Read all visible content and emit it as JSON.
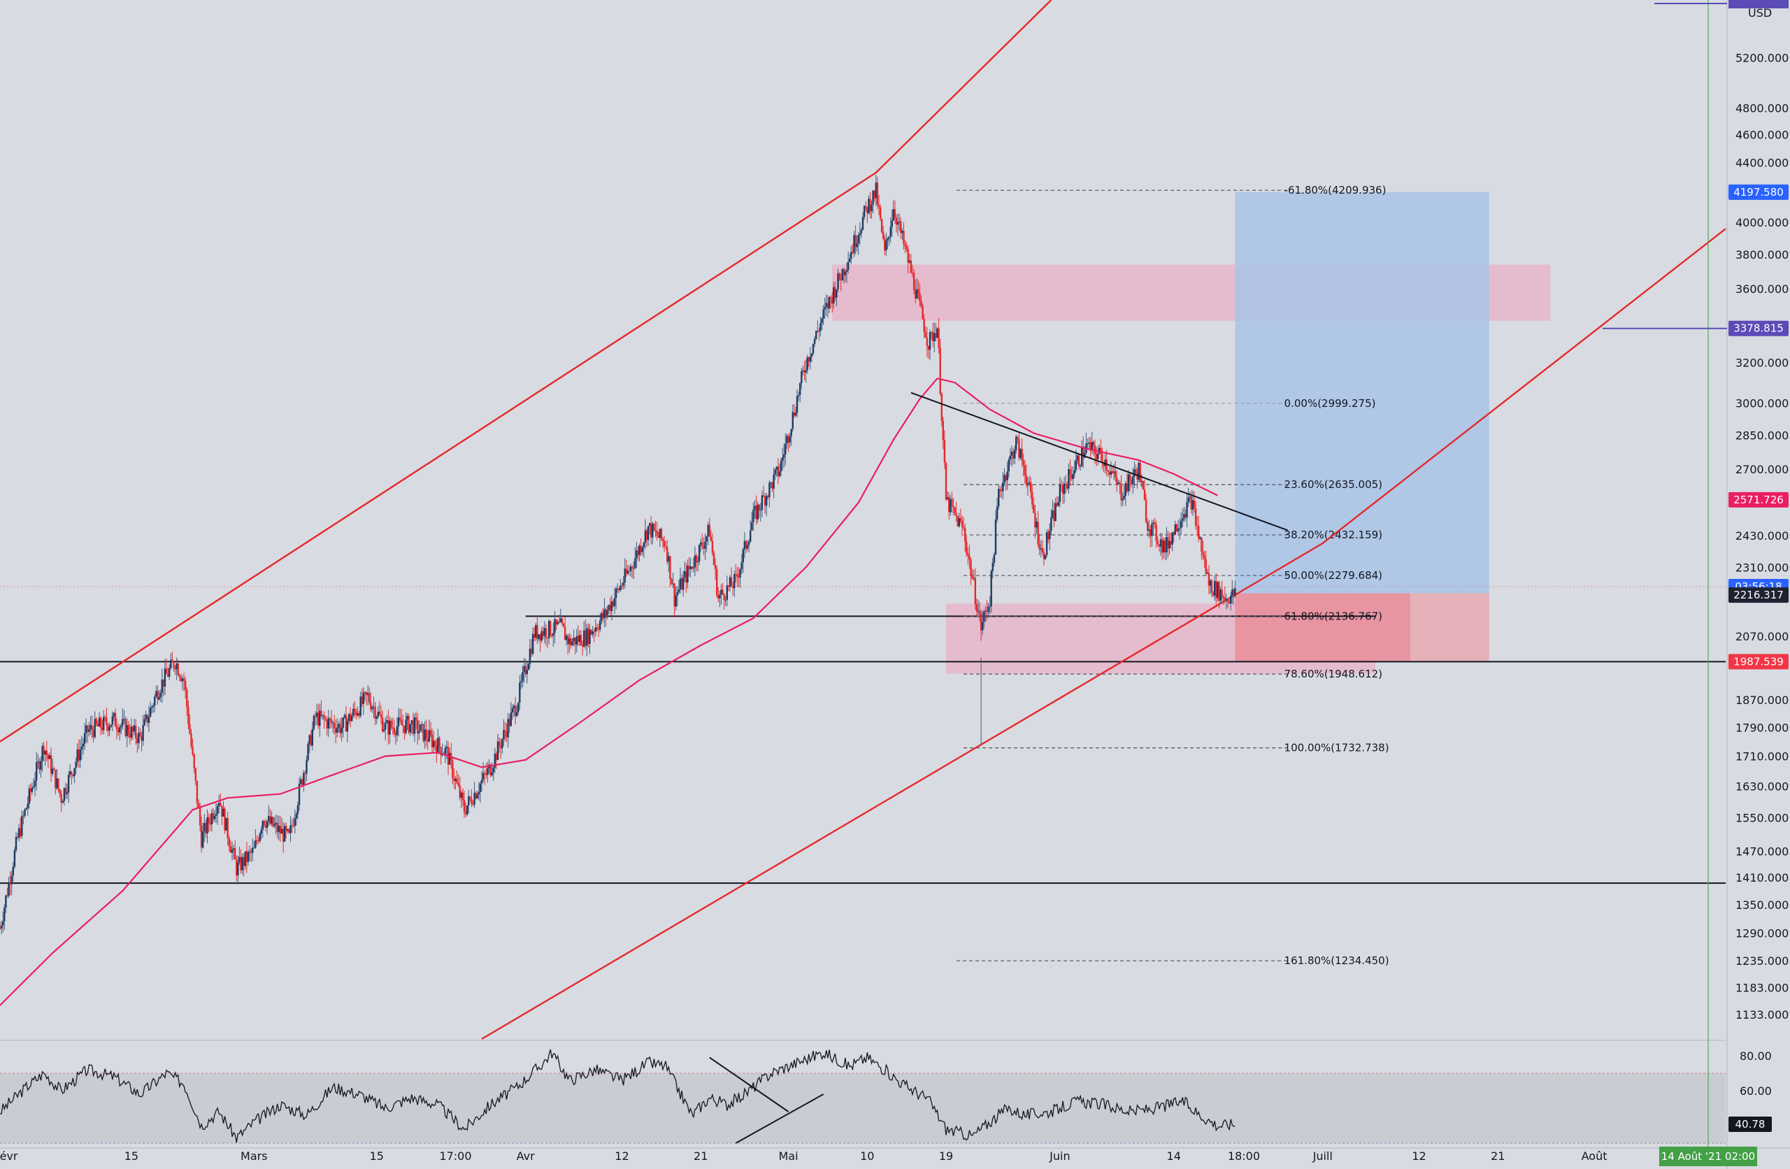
{
  "chart_data": {
    "type": "candlestick",
    "currency": "USD",
    "y_scale": "log",
    "ylim": [
      1090,
      5700
    ],
    "x_range": [
      "2021-01-31",
      "2021-08-16"
    ],
    "price_ticks": [
      "5200.000",
      "4800.000",
      "4600.000",
      "4400.000",
      "4000.000",
      "3800.000",
      "3600.000",
      "3200.000",
      "3000.000",
      "2850.000",
      "2700.000",
      "2430.000",
      "2310.000",
      "2070.000",
      "1870.000",
      "1790.000",
      "1710.000",
      "1630.000",
      "1550.000",
      "1470.000",
      "1410.000",
      "1350.000",
      "1290.000",
      "1235.000",
      "1183.000",
      "1133.000"
    ],
    "time_ticks": [
      {
        "label": "évr",
        "date": "2021-02-01"
      },
      {
        "label": "15",
        "date": "2021-02-15"
      },
      {
        "label": "Mars",
        "date": "2021-03-01"
      },
      {
        "label": "15",
        "date": "2021-03-15"
      },
      {
        "label": "17:00",
        "date": "2021-03-24"
      },
      {
        "label": "Avr",
        "date": "2021-04-01"
      },
      {
        "label": "12",
        "date": "2021-04-12"
      },
      {
        "label": "21",
        "date": "2021-04-21"
      },
      {
        "label": "Mai",
        "date": "2021-05-01"
      },
      {
        "label": "10",
        "date": "2021-05-10"
      },
      {
        "label": "19",
        "date": "2021-05-19"
      },
      {
        "label": "Juin",
        "date": "2021-06-01"
      },
      {
        "label": "14",
        "date": "2021-06-14"
      },
      {
        "label": "18:00",
        "date": "2021-06-22"
      },
      {
        "label": "Juill",
        "date": "2021-07-01"
      },
      {
        "label": "12",
        "date": "2021-07-12"
      },
      {
        "label": "21",
        "date": "2021-07-21"
      },
      {
        "label": "Août",
        "date": "2021-08-01"
      }
    ],
    "crosshair_time_label": "14 Août '21   02:00",
    "price_path": [
      [
        "2021-01-31",
        1300
      ],
      [
        "2021-02-02",
        1500
      ],
      [
        "2021-02-05",
        1740
      ],
      [
        "2021-02-07",
        1600
      ],
      [
        "2021-02-10",
        1780
      ],
      [
        "2021-02-13",
        1810
      ],
      [
        "2021-02-16",
        1760
      ],
      [
        "2021-02-18",
        1900
      ],
      [
        "2021-02-20",
        1990
      ],
      [
        "2021-02-21",
        1930
      ],
      [
        "2021-02-23",
        1500
      ],
      [
        "2021-02-25",
        1600
      ],
      [
        "2021-02-27",
        1430
      ],
      [
        "2021-03-01",
        1470
      ],
      [
        "2021-03-02",
        1550
      ],
      [
        "2021-03-05",
        1500
      ],
      [
        "2021-03-08",
        1820
      ],
      [
        "2021-03-11",
        1790
      ],
      [
        "2021-03-14",
        1880
      ],
      [
        "2021-03-16",
        1790
      ],
      [
        "2021-03-19",
        1800
      ],
      [
        "2021-03-23",
        1720
      ],
      [
        "2021-03-25",
        1570
      ],
      [
        "2021-03-28",
        1680
      ],
      [
        "2021-03-31",
        1860
      ],
      [
        "2021-04-02",
        2080
      ],
      [
        "2021-04-05",
        2100
      ],
      [
        "2021-04-06",
        2050
      ],
      [
        "2021-04-08",
        2070
      ],
      [
        "2021-04-10",
        2140
      ],
      [
        "2021-04-13",
        2310
      ],
      [
        "2021-04-15",
        2460
      ],
      [
        "2021-04-17",
        2400
      ],
      [
        "2021-04-18",
        2200
      ],
      [
        "2021-04-22",
        2450
      ],
      [
        "2021-04-23",
        2200
      ],
      [
        "2021-04-25",
        2260
      ],
      [
        "2021-04-27",
        2500
      ],
      [
        "2021-04-30",
        2700
      ],
      [
        "2021-05-03",
        3200
      ],
      [
        "2021-05-05",
        3450
      ],
      [
        "2021-05-08",
        3800
      ],
      [
        "2021-05-10",
        4100
      ],
      [
        "2021-05-11",
        4200
      ],
      [
        "2021-05-12",
        3800
      ],
      [
        "2021-05-13",
        4100
      ],
      [
        "2021-05-15",
        3700
      ],
      [
        "2021-05-17",
        3300
      ],
      [
        "2021-05-18",
        3390
      ],
      [
        "2021-05-19",
        2570
      ],
      [
        "2021-05-21",
        2450
      ],
      [
        "2021-05-23",
        2100
      ],
      [
        "2021-05-24",
        2200
      ],
      [
        "2021-05-25",
        2600
      ],
      [
        "2021-05-27",
        2820
      ],
      [
        "2021-05-28",
        2700
      ],
      [
        "2021-05-30",
        2350
      ],
      [
        "2021-06-01",
        2600
      ],
      [
        "2021-06-04",
        2800
      ],
      [
        "2021-06-06",
        2750
      ],
      [
        "2021-06-08",
        2600
      ],
      [
        "2021-06-10",
        2700
      ],
      [
        "2021-06-11",
        2480
      ],
      [
        "2021-06-13",
        2380
      ],
      [
        "2021-06-15",
        2520
      ],
      [
        "2021-06-16",
        2570
      ],
      [
        "2021-06-18",
        2250
      ],
      [
        "2021-06-20",
        2200
      ],
      [
        "2021-06-21",
        2210
      ]
    ],
    "ma_path": [
      [
        "2021-01-31",
        1150
      ],
      [
        "2021-02-06",
        1250
      ],
      [
        "2021-02-14",
        1380
      ],
      [
        "2021-02-22",
        1570
      ],
      [
        "2021-02-26",
        1600
      ],
      [
        "2021-03-04",
        1610
      ],
      [
        "2021-03-10",
        1660
      ],
      [
        "2021-03-16",
        1710
      ],
      [
        "2021-03-22",
        1720
      ],
      [
        "2021-03-27",
        1680
      ],
      [
        "2021-04-01",
        1700
      ],
      [
        "2021-04-07",
        1800
      ],
      [
        "2021-04-14",
        1930
      ],
      [
        "2021-04-21",
        2040
      ],
      [
        "2021-04-27",
        2130
      ],
      [
        "2021-05-03",
        2310
      ],
      [
        "2021-05-09",
        2560
      ],
      [
        "2021-05-13",
        2830
      ],
      [
        "2021-05-16",
        3020
      ],
      [
        "2021-05-18",
        3120
      ],
      [
        "2021-05-20",
        3100
      ],
      [
        "2021-05-24",
        2970
      ],
      [
        "2021-05-29",
        2860
      ],
      [
        "2021-06-04",
        2790
      ],
      [
        "2021-06-10",
        2740
      ],
      [
        "2021-06-14",
        2680
      ],
      [
        "2021-06-19",
        2590
      ]
    ],
    "channel": {
      "upper": [
        [
          "2021-01-31",
          1750
        ],
        [
          "2021-05-11",
          4330
        ],
        [
          "2021-05-31",
          5700
        ]
      ],
      "lower": [
        [
          "2021-03-27",
          1090
        ],
        [
          "2021-07-01",
          2400
        ],
        [
          "2021-08-16",
          3960
        ]
      ]
    },
    "horizontal_lines": [
      {
        "price": 1987.539,
        "from": "2021-01-31"
      },
      {
        "price": 1397,
        "from": "2021-01-31"
      },
      {
        "price": 2136.767,
        "from": "2021-04-01",
        "to": "2021-07-07"
      }
    ],
    "descending_line": [
      [
        "2021-05-15",
        3050
      ],
      [
        "2021-06-27",
        2450
      ]
    ],
    "fibonacci": {
      "from": "2021-05-21",
      "to": "2021-06-27",
      "levels": [
        {
          "label": "-61.80%(4209.936)",
          "price": 4209.936
        },
        {
          "label": "0.00%(2999.275)",
          "price": 2999.275
        },
        {
          "label": "23.60%(2635.005)",
          "price": 2635.005
        },
        {
          "label": "38.20%(2432.159)",
          "price": 2432.159
        },
        {
          "label": "50.00%(2279.684)",
          "price": 2279.684
        },
        {
          "label": "61.80%(2136.767)",
          "price": 2136.767
        },
        {
          "label": "78.60%(1948.612)",
          "price": 1948.612
        },
        {
          "label": "100.00%(1732.738)",
          "price": 1732.738
        },
        {
          "label": "161.80%(1234.450)",
          "price": 1234.45
        }
      ]
    },
    "zones": [
      {
        "name": "supply",
        "from": "2021-05-06",
        "to": "2021-07-27",
        "top": 3740,
        "bottom": 3420,
        "color": "#e8b4c8"
      },
      {
        "name": "demand",
        "from": "2021-05-19",
        "to": "2021-07-07",
        "top": 2180,
        "bottom": 1950,
        "color": "#e8b4c8"
      },
      {
        "name": "target",
        "from": "2021-06-21",
        "to": "2021-07-20",
        "top": 4197.58,
        "bottom": 2216.317,
        "color": "#a9c3e6"
      },
      {
        "name": "stop",
        "from": "2021-06-21",
        "to": "2021-07-20",
        "top": 2216.317,
        "bottom": 1987.539,
        "color": "#e9a6ae"
      },
      {
        "name": "stop-inner",
        "from": "2021-06-21",
        "to": "2021-07-11",
        "top": 2216.317,
        "bottom": 1987.539,
        "color": "#e88f9c"
      }
    ],
    "price_badges": [
      {
        "label": "4197.580",
        "price": 4197.58,
        "color": "#2962ff"
      },
      {
        "label": "3378.815",
        "price": 3378.815,
        "color": "#5b4bb7"
      },
      {
        "label": "2571.726",
        "price": 2571.726,
        "color": "#e91e63"
      },
      {
        "label": "03:56:18",
        "price": 2240,
        "color": "#2962ff"
      },
      {
        "label": "2216.317",
        "price": 2210,
        "color": "#1e2230"
      },
      {
        "label": "1987.539",
        "price": 1987.539,
        "color": "#f23645"
      }
    ],
    "rsi": {
      "ticks": [
        "80.00",
        "60.00"
      ],
      "current": "40.78",
      "band": [
        30,
        70
      ],
      "ylim": [
        28,
        88
      ],
      "path": [
        [
          "2021-01-31",
          48
        ],
        [
          "2021-02-03",
          62
        ],
        [
          "2021-02-05",
          70
        ],
        [
          "2021-02-07",
          60
        ],
        [
          "2021-02-10",
          72
        ],
        [
          "2021-02-13",
          68
        ],
        [
          "2021-02-16",
          58
        ],
        [
          "2021-02-19",
          70
        ],
        [
          "2021-02-21",
          64
        ],
        [
          "2021-02-23",
          40
        ],
        [
          "2021-02-25",
          48
        ],
        [
          "2021-02-27",
          33
        ],
        [
          "2021-03-01",
          42
        ],
        [
          "2021-03-04",
          52
        ],
        [
          "2021-03-07",
          46
        ],
        [
          "2021-03-10",
          62
        ],
        [
          "2021-03-13",
          58
        ],
        [
          "2021-03-16",
          50
        ],
        [
          "2021-03-19",
          56
        ],
        [
          "2021-03-22",
          52
        ],
        [
          "2021-03-25",
          38
        ],
        [
          "2021-03-28",
          52
        ],
        [
          "2021-03-31",
          62
        ],
        [
          "2021-04-03",
          76
        ],
        [
          "2021-04-04",
          82
        ],
        [
          "2021-04-06",
          66
        ],
        [
          "2021-04-09",
          72
        ],
        [
          "2021-04-12",
          66
        ],
        [
          "2021-04-15",
          76
        ],
        [
          "2021-04-17",
          74
        ],
        [
          "2021-04-20",
          46
        ],
        [
          "2021-04-22",
          56
        ],
        [
          "2021-04-24",
          52
        ],
        [
          "2021-04-26",
          58
        ],
        [
          "2021-04-29",
          70
        ],
        [
          "2021-05-03",
          78
        ],
        [
          "2021-05-05",
          82
        ],
        [
          "2021-05-08",
          74
        ],
        [
          "2021-05-10",
          79
        ],
        [
          "2021-05-12",
          72
        ],
        [
          "2021-05-14",
          64
        ],
        [
          "2021-05-17",
          55
        ],
        [
          "2021-05-19",
          38
        ],
        [
          "2021-05-22",
          34
        ],
        [
          "2021-05-24",
          42
        ],
        [
          "2021-05-26",
          50
        ],
        [
          "2021-05-28",
          46
        ],
        [
          "2021-05-31",
          48
        ],
        [
          "2021-06-03",
          54
        ],
        [
          "2021-06-06",
          52
        ],
        [
          "2021-06-09",
          48
        ],
        [
          "2021-06-12",
          50
        ],
        [
          "2021-06-15",
          54
        ],
        [
          "2021-06-17",
          46
        ],
        [
          "2021-06-19",
          40
        ],
        [
          "2021-06-21",
          41
        ]
      ],
      "triangle_lines": [
        [
          [
            "2021-04-22",
            79
          ],
          [
            "2021-05-01",
            48
          ]
        ],
        [
          [
            "2021-04-25",
            30
          ],
          [
            "2021-05-05",
            58
          ]
        ]
      ]
    }
  }
}
